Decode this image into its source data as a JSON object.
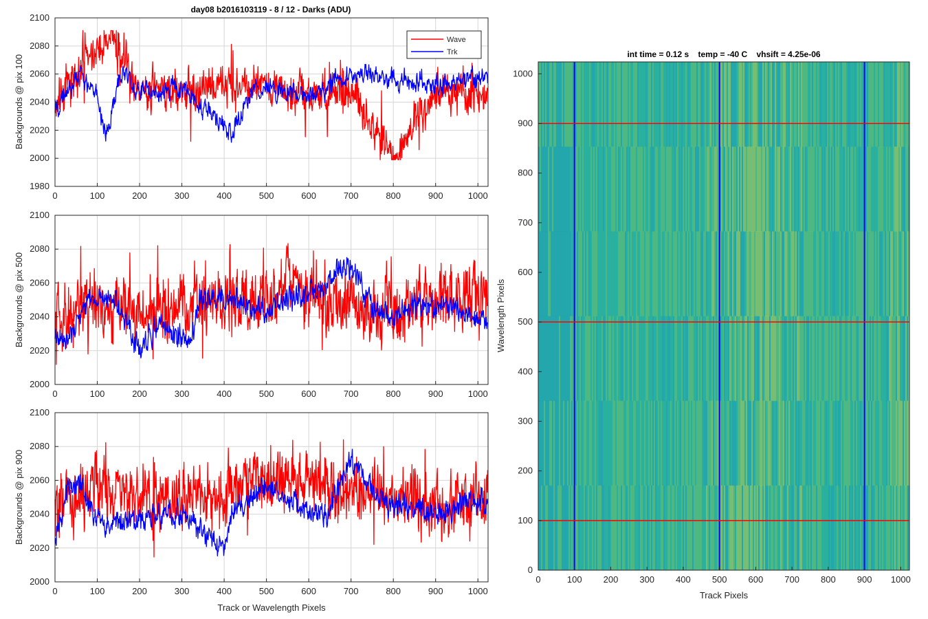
{
  "figure_title": "day08 b2016103119 - 8 / 12 - Darks (ADU)",
  "colors": {
    "wave": "#ff0000",
    "trk": "#0000ff",
    "grid": "#d6d6d6",
    "axis": "#262626"
  },
  "chart_data": [
    {
      "type": "line",
      "title": "day08 b2016103119 - 8 / 12 - Darks (ADU)",
      "xlabel": "",
      "ylabel": "Backgrounds @ pix 100",
      "xlim": [
        0,
        1024
      ],
      "ylim": [
        1980,
        2100
      ],
      "xticks": [
        0,
        100,
        200,
        300,
        400,
        500,
        600,
        700,
        800,
        900,
        1000
      ],
      "yticks": [
        1980,
        2000,
        2020,
        2040,
        2060,
        2080,
        2100
      ],
      "grid": true,
      "legend": {
        "position": "top-right",
        "entries": [
          "Wave",
          "Trk"
        ]
      },
      "series": [
        {
          "name": "Wave",
          "color": "#ff0000",
          "mean": 2046,
          "noise": 9,
          "spike_max": 2091,
          "spike_min": 1999,
          "x": [
            0,
            128,
            200,
            300,
            400,
            500,
            600,
            700,
            800,
            900,
            1024
          ],
          "values": [
            2040,
            2091,
            2046,
            2048,
            2050,
            2052,
            2045,
            2050,
            1999,
            2046,
            2045
          ]
        },
        {
          "name": "Trk",
          "color": "#0000ff",
          "mean": 2048,
          "noise": 6,
          "x": [
            0,
            60,
            100,
            120,
            160,
            200,
            300,
            420,
            470,
            600,
            700,
            750,
            900,
            1024
          ],
          "values": [
            2034,
            2060,
            2044,
            2016,
            2064,
            2046,
            2050,
            2018,
            2050,
            2045,
            2060,
            2058,
            2053,
            2058
          ]
        }
      ]
    },
    {
      "type": "line",
      "title": "",
      "xlabel": "",
      "ylabel": "Backgrounds @ pix 500",
      "xlim": [
        0,
        1024
      ],
      "ylim": [
        2000,
        2100
      ],
      "xticks": [
        0,
        100,
        200,
        300,
        400,
        500,
        600,
        700,
        800,
        900,
        1000
      ],
      "yticks": [
        2000,
        2020,
        2040,
        2060,
        2080,
        2100
      ],
      "grid": true,
      "series": [
        {
          "name": "Wave",
          "color": "#ff0000",
          "mean": 2046,
          "noise": 11,
          "spike_max": 2090,
          "spike_min": 2003,
          "x": [
            0,
            100,
            200,
            300,
            400,
            500,
            550,
            600,
            700,
            800,
            900,
            1024
          ],
          "values": [
            2042,
            2050,
            2044,
            2047,
            2050,
            2050,
            2058,
            2056,
            2048,
            2044,
            2048,
            2056
          ]
        },
        {
          "name": "Trk",
          "color": "#0000ff",
          "mean": 2045,
          "noise": 6,
          "x": [
            0,
            20,
            80,
            130,
            200,
            250,
            320,
            340,
            400,
            500,
            600,
            700,
            750,
            800,
            900,
            1024
          ],
          "values": [
            2030,
            2025,
            2048,
            2055,
            2020,
            2038,
            2022,
            2050,
            2050,
            2045,
            2055,
            2072,
            2045,
            2042,
            2048,
            2038
          ]
        }
      ]
    },
    {
      "type": "line",
      "title": "",
      "xlabel": "Track or Wavelength Pixels",
      "ylabel": "Backgrounds @ pix 900",
      "xlim": [
        0,
        1024
      ],
      "ylim": [
        2000,
        2100
      ],
      "xticks": [
        0,
        100,
        200,
        300,
        400,
        500,
        600,
        700,
        800,
        900,
        1000
      ],
      "yticks": [
        2000,
        2020,
        2040,
        2060,
        2080,
        2100
      ],
      "grid": true,
      "series": [
        {
          "name": "Wave",
          "color": "#ff0000",
          "mean": 2047,
          "noise": 11,
          "spike_max": 2084,
          "spike_min": 2005,
          "x": [
            0,
            100,
            200,
            300,
            400,
            500,
            600,
            700,
            800,
            900,
            1024
          ],
          "values": [
            2040,
            2055,
            2052,
            2050,
            2050,
            2060,
            2058,
            2055,
            2050,
            2045,
            2052
          ]
        },
        {
          "name": "Trk",
          "color": "#0000ff",
          "mean": 2042,
          "noise": 6,
          "x": [
            0,
            30,
            60,
            100,
            200,
            300,
            400,
            420,
            500,
            580,
            640,
            700,
            760,
            900,
            1024
          ],
          "values": [
            2025,
            2055,
            2058,
            2035,
            2036,
            2040,
            2020,
            2044,
            2055,
            2044,
            2040,
            2072,
            2050,
            2040,
            2050
          ]
        }
      ]
    },
    {
      "type": "heatmap",
      "title": "int time = 0.12 s    temp = -40 C    vhsift = 4.25e-06",
      "xlabel": "Track Pixels",
      "ylabel": "Wavelength Pixels",
      "xlim": [
        0,
        1024
      ],
      "ylim": [
        0,
        1024
      ],
      "xticks": [
        0,
        100,
        200,
        300,
        400,
        500,
        600,
        700,
        800,
        900,
        1000
      ],
      "yticks": [
        0,
        100,
        200,
        300,
        400,
        500,
        600,
        700,
        800,
        900,
        1000
      ],
      "colormap": [
        "#1f9eb8",
        "#2ab09f",
        "#6cc06a",
        "#b8c850"
      ],
      "vertical_lines": {
        "color": "#0000ff",
        "x": [
          100,
          500,
          900
        ]
      },
      "horizontal_lines": {
        "color": "#ff0000",
        "y": [
          100,
          500,
          900
        ]
      }
    }
  ]
}
